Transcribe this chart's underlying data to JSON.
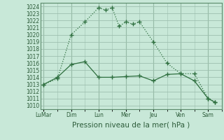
{
  "background_color": "#c8e8d8",
  "grid_color": "#9dbfaf",
  "line_color": "#2d6e3e",
  "ylabel": "Pression niveau de la mer( hPa )",
  "ylim": [
    1009.5,
    1024.5
  ],
  "yticks": [
    1010,
    1011,
    1012,
    1013,
    1014,
    1015,
    1016,
    1017,
    1018,
    1019,
    1020,
    1021,
    1022,
    1023,
    1024
  ],
  "x_major_labels": [
    "LuMar",
    "Dim",
    "Lun",
    "Mer",
    "Jeu",
    "Ven",
    "Sam"
  ],
  "x_major_pos": [
    0,
    4,
    8,
    12,
    16,
    20,
    24
  ],
  "xlim": [
    -0.5,
    26
  ],
  "line1_x": [
    0,
    2,
    4,
    6,
    8,
    9,
    10,
    11,
    12,
    13,
    14,
    16,
    18,
    20,
    22,
    24,
    25
  ],
  "line1_y": [
    1013.0,
    1013.8,
    1020.0,
    1021.8,
    1023.8,
    1023.5,
    1023.8,
    1021.2,
    1021.8,
    1021.5,
    1021.8,
    1019.0,
    1016.0,
    1014.5,
    1014.5,
    1011.0,
    1010.5
  ],
  "line2_x": [
    0,
    2,
    4,
    6,
    8,
    10,
    12,
    14,
    16,
    18,
    20,
    22,
    24,
    25
  ],
  "line2_y": [
    1013.0,
    1014.0,
    1015.8,
    1016.2,
    1014.0,
    1014.0,
    1014.1,
    1014.2,
    1013.5,
    1014.4,
    1014.5,
    1013.5,
    1011.0,
    1010.5
  ],
  "tick_fontsize": 5.5,
  "xlabel_fontsize": 7.5
}
